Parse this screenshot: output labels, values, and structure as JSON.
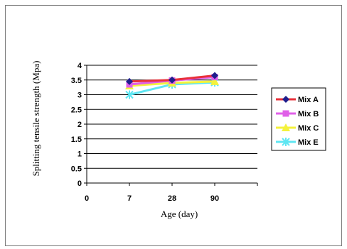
{
  "chart_data": {
    "type": "line",
    "title": "",
    "xlabel": "Age (day)",
    "ylabel": "Splitting tensile  strength  (Mpa)",
    "categories": [
      "0",
      "7",
      "28",
      "90"
    ],
    "ylim": [
      0,
      4
    ],
    "yticks": [
      "0",
      "0.5",
      "1",
      "1.5",
      "2",
      "2.5",
      "3",
      "3.5",
      "4"
    ],
    "grid": true,
    "legend_position": "right",
    "series": [
      {
        "name": "Mix A",
        "values": [
          null,
          3.45,
          3.5,
          3.65
        ],
        "color": "#e8303a",
        "marker": "diamond",
        "marker_color": "#1e1e8c"
      },
      {
        "name": "Mix B",
        "values": [
          null,
          3.35,
          3.48,
          3.6
        ],
        "color": "#e060e8",
        "marker": "square",
        "marker_color": "#e060e8"
      },
      {
        "name": "Mix C",
        "values": [
          null,
          3.3,
          3.4,
          3.45
        ],
        "color": "#f4f23c",
        "marker": "triangle",
        "marker_color": "#f4f23c"
      },
      {
        "name": "Mix E",
        "values": [
          null,
          3.0,
          3.35,
          3.42
        ],
        "color": "#5fe6f2",
        "marker": "x",
        "marker_color": "#5fe6f2"
      }
    ]
  }
}
